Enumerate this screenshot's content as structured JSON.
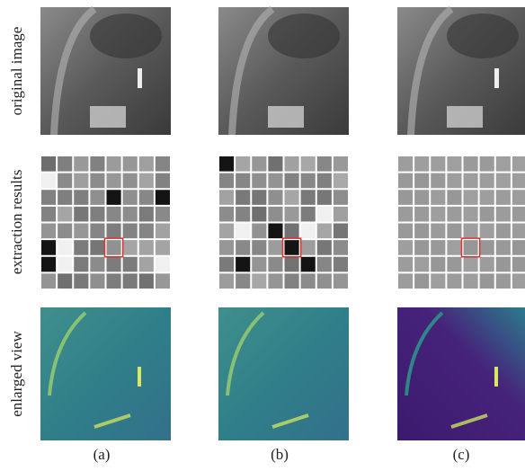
{
  "figure": {
    "row_labels": [
      "original image",
      "extraction results",
      "enlarged view"
    ],
    "column_labels": [
      "(a)",
      "(b)",
      "(c)"
    ]
  }
}
